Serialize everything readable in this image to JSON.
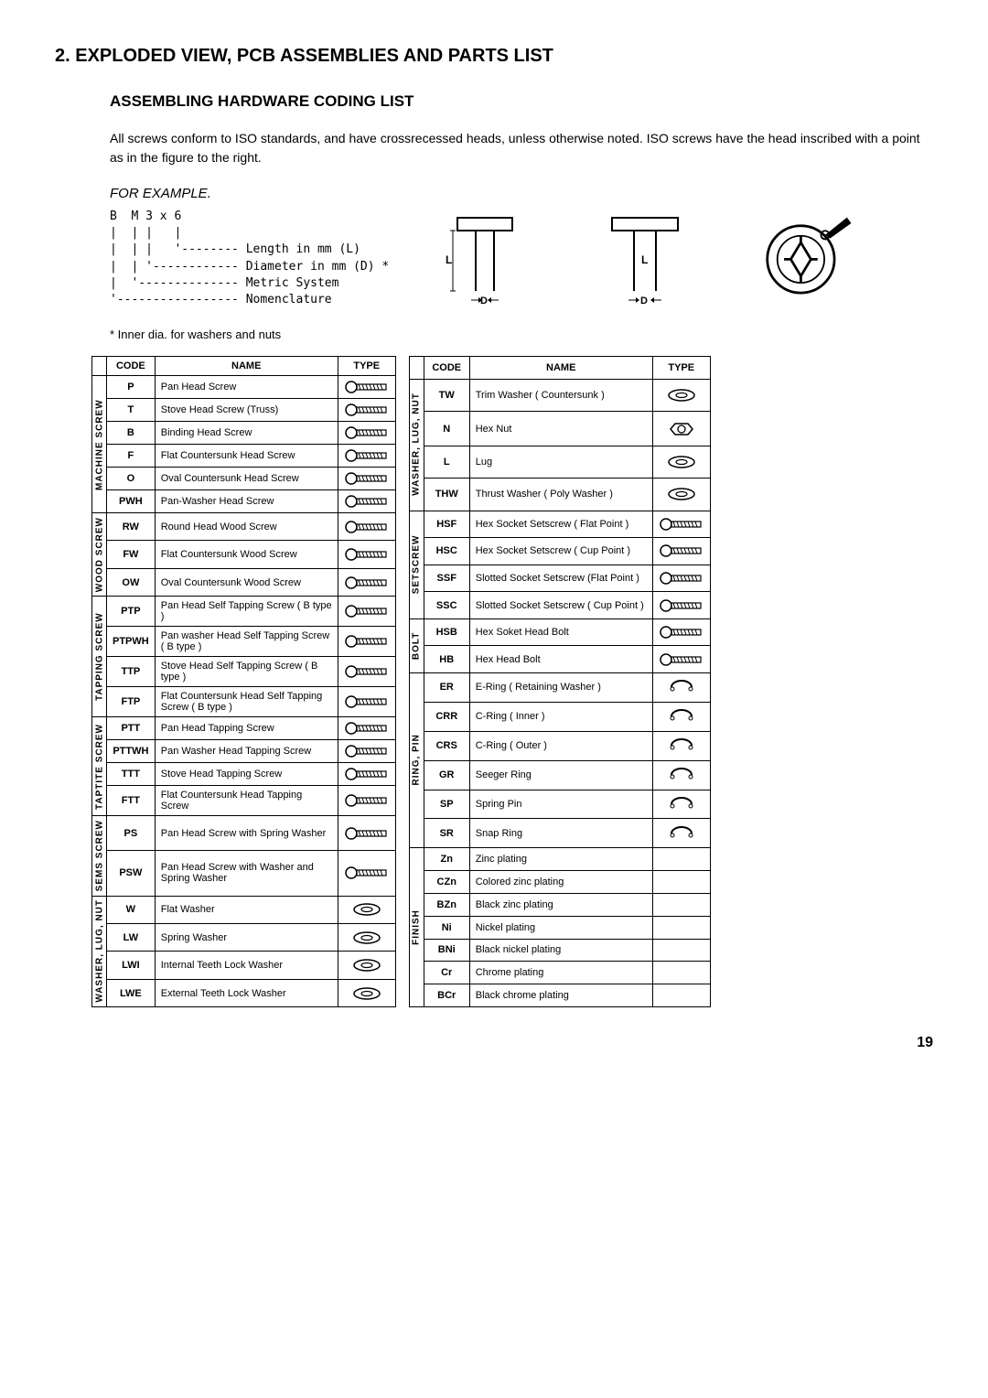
{
  "page": {
    "section_title": "2. EXPLODED VIEW, PCB ASSEMBLIES AND PARTS LIST",
    "subtitle": "ASSEMBLING HARDWARE CODING LIST",
    "intro": "All screws conform to ISO standards, and have crossrecessed heads, unless otherwise noted. ISO screws have the head inscribed with a point as in the figure to the right.",
    "example_label": "FOR EXAMPLE.",
    "coding_lines": [
      "B  M 3 x 6",
      "|  | |   |",
      "|  | |   '-------- Length in mm (L)",
      "|  | '------------ Diameter in mm (D) *",
      "|  '-------------- Metric System",
      "'----------------- Nomenclature"
    ],
    "note": "* Inner dia. for washers and nuts",
    "page_number": "19",
    "colors": {
      "text": "#000000",
      "bg": "#ffffff",
      "border": "#000000"
    }
  },
  "headers": {
    "code": "CODE",
    "name": "NAME",
    "type": "TYPE"
  },
  "left_groups": [
    {
      "group": "MACHINE SCREW",
      "rows": [
        {
          "code": "P",
          "name": "Pan Head Screw"
        },
        {
          "code": "T",
          "name": "Stove Head Screw (Truss)"
        },
        {
          "code": "B",
          "name": "Binding Head Screw"
        },
        {
          "code": "F",
          "name": "Flat Countersunk Head Screw"
        },
        {
          "code": "O",
          "name": "Oval Countersunk Head Screw"
        },
        {
          "code": "PWH",
          "name": "Pan-Washer Head Screw"
        }
      ]
    },
    {
      "group": "WOOD SCREW",
      "rows": [
        {
          "code": "RW",
          "name": "Round Head Wood Screw"
        },
        {
          "code": "FW",
          "name": "Flat Countersunk Wood Screw"
        },
        {
          "code": "OW",
          "name": "Oval Countersunk Wood Screw"
        }
      ]
    },
    {
      "group": "TAPPING SCREW",
      "rows": [
        {
          "code": "PTP",
          "name": "Pan Head Self Tapping Screw ( B type )"
        },
        {
          "code": "PTPWH",
          "name": "Pan washer Head Self Tapping Screw ( B type )"
        },
        {
          "code": "TTP",
          "name": "Stove Head Self Tapping Screw ( B type )"
        },
        {
          "code": "FTP",
          "name": "Flat Countersunk Head Self Tapping Screw ( B type )"
        }
      ]
    },
    {
      "group": "TAPTITE SCREW",
      "rows": [
        {
          "code": "PTT",
          "name": "Pan Head Tapping Screw"
        },
        {
          "code": "PTTWH",
          "name": "Pan Washer Head Tapping Screw"
        },
        {
          "code": "TTT",
          "name": "Stove Head Tapping Screw"
        },
        {
          "code": "FTT",
          "name": "Flat Countersunk Head Tapping Screw"
        }
      ]
    },
    {
      "group": "SEMS SCREW",
      "rows": [
        {
          "code": "PS",
          "name": "Pan Head Screw with Spring Washer"
        },
        {
          "code": "PSW",
          "name": "Pan Head Screw with Washer and Spring Washer"
        }
      ]
    },
    {
      "group": "WASHER, LUG, NUT",
      "rows": [
        {
          "code": "W",
          "name": "Flat Washer"
        },
        {
          "code": "LW",
          "name": "Spring Washer"
        },
        {
          "code": "LWI",
          "name": "Internal Teeth Lock Washer"
        },
        {
          "code": "LWE",
          "name": "External Teeth Lock Washer"
        }
      ]
    }
  ],
  "right_groups": [
    {
      "group": "WASHER, LUG, NUT",
      "rows": [
        {
          "code": "TW",
          "name": "Trim Washer ( Countersunk )"
        },
        {
          "code": "N",
          "name": "Hex Nut"
        },
        {
          "code": "L",
          "name": "Lug"
        },
        {
          "code": "THW",
          "name": "Thrust Washer ( Poly Washer )"
        }
      ]
    },
    {
      "group": "SETSCREW",
      "rows": [
        {
          "code": "HSF",
          "name": "Hex Socket Setscrew ( Flat Point )"
        },
        {
          "code": "HSC",
          "name": "Hex Socket Setscrew ( Cup Point )"
        },
        {
          "code": "SSF",
          "name": "Slotted Socket Setscrew (Flat Point )"
        },
        {
          "code": "SSC",
          "name": "Slotted Socket Setscrew ( Cup Point )"
        }
      ]
    },
    {
      "group": "BOLT",
      "rows": [
        {
          "code": "HSB",
          "name": "Hex Soket Head Bolt"
        },
        {
          "code": "HB",
          "name": "Hex Head Bolt"
        }
      ]
    },
    {
      "group": "RING, PIN",
      "rows": [
        {
          "code": "ER",
          "name": "E-Ring ( Retaining Washer )"
        },
        {
          "code": "CRR",
          "name": "C-Ring ( Inner )"
        },
        {
          "code": "CRS",
          "name": "C-Ring ( Outer )"
        },
        {
          "code": "GR",
          "name": "Seeger Ring"
        },
        {
          "code": "SP",
          "name": "Spring Pin"
        },
        {
          "code": "SR",
          "name": "Snap Ring"
        }
      ]
    },
    {
      "group": "FINISH",
      "rows": [
        {
          "code": "Zn",
          "name": "Zinc plating"
        },
        {
          "code": "CZn",
          "name": "Colored zinc plating"
        },
        {
          "code": "BZn",
          "name": "Black zinc plating"
        },
        {
          "code": "Ni",
          "name": "Nickel plating"
        },
        {
          "code": "BNi",
          "name": "Black nickel plating"
        },
        {
          "code": "Cr",
          "name": "Chrome plating"
        },
        {
          "code": "BCr",
          "name": "Black chrome plating"
        }
      ]
    }
  ]
}
